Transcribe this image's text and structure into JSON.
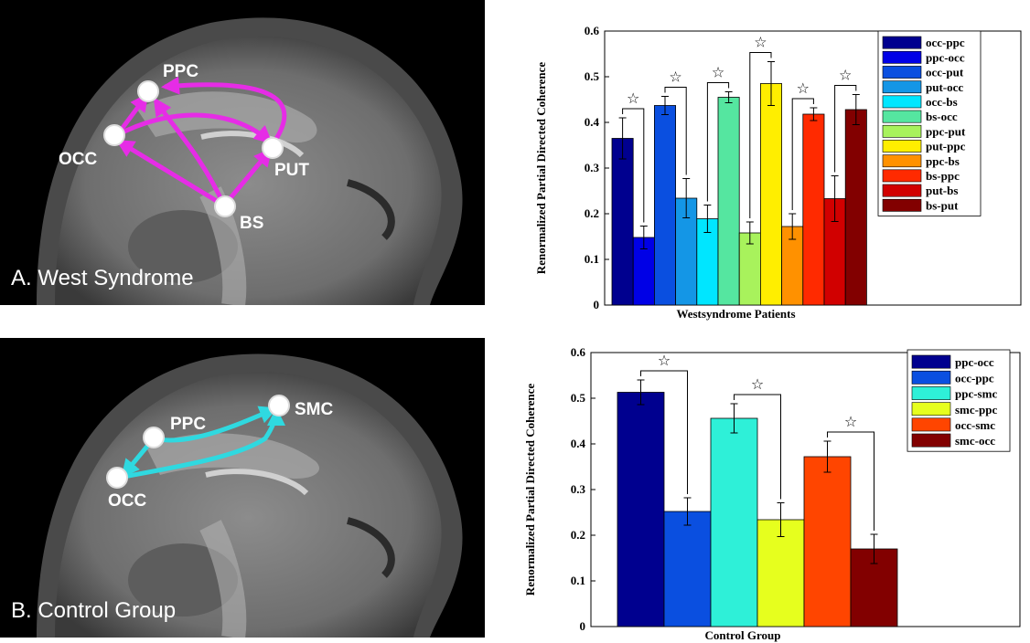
{
  "brain_panels": [
    {
      "caption": "A. West Syndrome",
      "arrow_color": "#e62ce6",
      "nodes": [
        {
          "id": "ppc",
          "label": "PPC"
        },
        {
          "id": "occ",
          "label": "OCC"
        },
        {
          "id": "put",
          "label": "PUT"
        },
        {
          "id": "bs",
          "label": "BS"
        }
      ]
    },
    {
      "caption": "B. Control Group",
      "arrow_color": "#2fd9e0",
      "nodes": [
        {
          "id": "ppc",
          "label": "PPC"
        },
        {
          "id": "occ",
          "label": "OCC"
        },
        {
          "id": "smc",
          "label": "SMC"
        }
      ]
    }
  ],
  "chart_data": [
    {
      "type": "bar",
      "xlabel": "Westsyndrome Patients",
      "ylabel": "Renormalized Partial Directed Coherence",
      "ylim": [
        0,
        0.6
      ],
      "yticks": [
        "0",
        "0.1",
        "0.2",
        "0.3",
        "0.4",
        "0.5",
        "0.6"
      ],
      "legend_position": "top-right",
      "significance_marker": "☆",
      "series": [
        {
          "name": "occ-ppc",
          "value": 0.365,
          "error": 0.045,
          "color": "#00008f"
        },
        {
          "name": "ppc-occ",
          "value": 0.148,
          "error": 0.025,
          "color": "#0000e6"
        },
        {
          "name": "occ-put",
          "value": 0.437,
          "error": 0.02,
          "color": "#0a4fe0"
        },
        {
          "name": "put-occ",
          "value": 0.234,
          "error": 0.043,
          "color": "#1496e6"
        },
        {
          "name": "occ-bs",
          "value": 0.189,
          "error": 0.03,
          "color": "#00e6ff"
        },
        {
          "name": "bs-occ",
          "value": 0.455,
          "error": 0.012,
          "color": "#55e6a0"
        },
        {
          "name": "ppc-put",
          "value": 0.158,
          "error": 0.024,
          "color": "#a8f25c"
        },
        {
          "name": "put-ppc",
          "value": 0.485,
          "error": 0.048,
          "color": "#ffee00"
        },
        {
          "name": "ppc-bs",
          "value": 0.172,
          "error": 0.028,
          "color": "#ff9100"
        },
        {
          "name": "bs-ppc",
          "value": 0.418,
          "error": 0.014,
          "color": "#ff2a00"
        },
        {
          "name": "put-bs",
          "value": 0.233,
          "error": 0.05,
          "color": "#d10000"
        },
        {
          "name": "bs-put",
          "value": 0.428,
          "error": 0.033,
          "color": "#820000"
        }
      ],
      "significant_pairs": [
        [
          0,
          1
        ],
        [
          2,
          3
        ],
        [
          4,
          5
        ],
        [
          6,
          7
        ],
        [
          8,
          9
        ],
        [
          10,
          11
        ]
      ]
    },
    {
      "type": "bar",
      "xlabel": "Control Group",
      "ylabel": "Renormalized Partial Directed Coherence",
      "ylim": [
        0,
        0.6
      ],
      "yticks": [
        "0",
        "0.1",
        "0.2",
        "0.3",
        "0.4",
        "0.5",
        "0.6"
      ],
      "legend_position": "top-right",
      "significance_marker": "☆",
      "series": [
        {
          "name": "ppc-occ",
          "value": 0.513,
          "error": 0.027,
          "color": "#00008f"
        },
        {
          "name": "occ-ppc",
          "value": 0.252,
          "error": 0.03,
          "color": "#0a4fe0"
        },
        {
          "name": "ppc-smc",
          "value": 0.456,
          "error": 0.032,
          "color": "#2ef0d8"
        },
        {
          "name": "smc-ppc",
          "value": 0.234,
          "error": 0.037,
          "color": "#e6ff1e"
        },
        {
          "name": "occ-smc",
          "value": 0.372,
          "error": 0.034,
          "color": "#ff4500"
        },
        {
          "name": "smc-occ",
          "value": 0.17,
          "error": 0.032,
          "color": "#820000"
        }
      ],
      "significant_pairs": [
        [
          0,
          1
        ],
        [
          2,
          3
        ],
        [
          4,
          5
        ]
      ]
    }
  ]
}
